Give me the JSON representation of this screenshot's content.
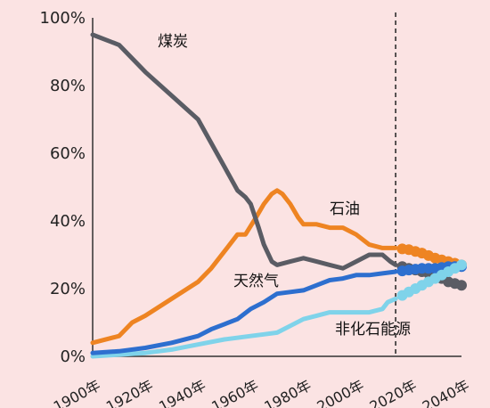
{
  "chart_data": {
    "type": "line",
    "xlim": [
      1900,
      2040
    ],
    "ylim": [
      0,
      100
    ],
    "y_ticks": [
      "0%",
      "20%",
      "40%",
      "60%",
      "80%",
      "100%"
    ],
    "x_ticks": [
      "1900年",
      "1920年",
      "1940年",
      "1960年",
      "1980年",
      "2000年",
      "2020年",
      "2040年"
    ],
    "divider_year": 2015,
    "grid": false,
    "legend": "inline-labels",
    "colors": {
      "coal": "#5a5c64",
      "oil": "#ee8422",
      "gas": "#2d6fcf",
      "nonfossil": "#7fd3ea",
      "axis": "#333333"
    },
    "series": [
      {
        "key": "coal",
        "name": "煤炭",
        "x": [
          1900,
          1910,
          1920,
          1930,
          1940,
          1945,
          1950,
          1955,
          1958,
          1960,
          1963,
          1965,
          1968,
          1970,
          1975,
          1980,
          1985,
          1990,
          1995,
          2000,
          2005,
          2010,
          2013,
          2015
        ],
        "y": [
          95,
          92,
          84,
          77,
          70,
          63,
          56,
          49,
          47,
          45,
          38,
          33,
          28,
          27,
          28,
          29,
          28,
          27,
          26,
          28,
          30,
          30,
          28,
          27
        ]
      },
      {
        "key": "oil",
        "name": "石油",
        "x": [
          1900,
          1910,
          1915,
          1920,
          1930,
          1940,
          1945,
          1950,
          1955,
          1958,
          1962,
          1965,
          1968,
          1970,
          1972,
          1975,
          1978,
          1980,
          1985,
          1990,
          1995,
          2000,
          2005,
          2010,
          2015
        ],
        "y": [
          4,
          6,
          10,
          12,
          17,
          22,
          26,
          31,
          36,
          36,
          41,
          45,
          48,
          49,
          48,
          45,
          41,
          39,
          39,
          38,
          38,
          36,
          33,
          32,
          32
        ]
      },
      {
        "key": "gas",
        "name": "天然气",
        "x": [
          1900,
          1910,
          1920,
          1930,
          1940,
          1945,
          1950,
          1955,
          1960,
          1965,
          1970,
          1975,
          1980,
          1985,
          1990,
          1995,
          2000,
          2005,
          2010,
          2015
        ],
        "y": [
          1,
          1.5,
          2.5,
          4,
          6,
          8,
          9.5,
          11,
          14,
          16,
          18.5,
          19,
          19.5,
          21,
          22.5,
          23,
          24,
          24,
          24.5,
          25
        ]
      },
      {
        "key": "nonfossil",
        "name": "非化石能源",
        "x": [
          1900,
          1910,
          1920,
          1930,
          1940,
          1950,
          1960,
          1965,
          1970,
          1975,
          1980,
          1985,
          1990,
          1995,
          2000,
          2005,
          2010,
          2012,
          2015
        ],
        "y": [
          0,
          0.5,
          1,
          2,
          3.5,
          5,
          6,
          6.5,
          7,
          9,
          11,
          12,
          13,
          13,
          13,
          13,
          14,
          16,
          17
        ]
      }
    ],
    "forecast": [
      {
        "key": "coal",
        "x": [
          2015,
          2020,
          2025,
          2030,
          2035,
          2040
        ],
        "y": [
          27,
          26,
          25,
          24,
          22,
          21
        ]
      },
      {
        "key": "oil",
        "x": [
          2015,
          2020,
          2025,
          2030,
          2035,
          2040
        ],
        "y": [
          32,
          31.5,
          30.5,
          29,
          28,
          27
        ]
      },
      {
        "key": "gas",
        "x": [
          2015,
          2020,
          2025,
          2030,
          2035,
          2040
        ],
        "y": [
          25,
          25.5,
          26,
          26,
          26.5,
          26.5
        ]
      },
      {
        "key": "nonfossil",
        "x": [
          2015,
          2020,
          2025,
          2030,
          2035,
          2040
        ],
        "y": [
          17,
          19,
          21,
          23,
          25,
          27
        ]
      }
    ]
  }
}
